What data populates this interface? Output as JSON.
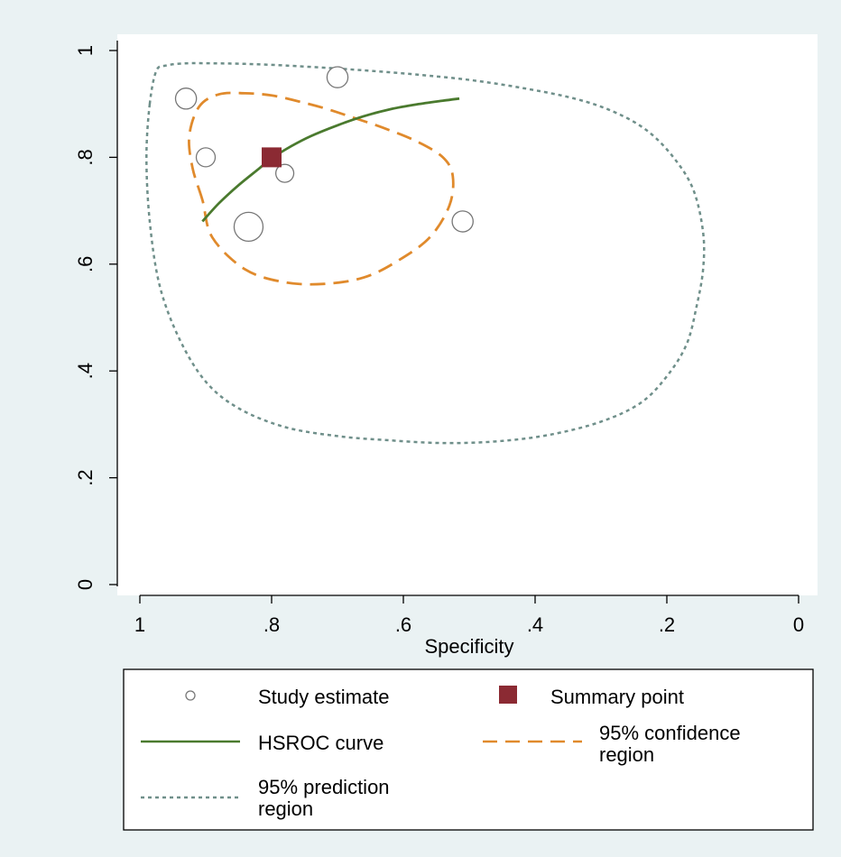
{
  "chart_data": {
    "type": "scatter",
    "xlabel": "Specificity",
    "ylabel": "",
    "xlim": [
      1,
      0
    ],
    "ylim": [
      0,
      1
    ],
    "x_reversed": true,
    "x_ticks": [
      "1",
      ".8",
      ".6",
      ".4",
      ".2",
      "0"
    ],
    "x_tick_values": [
      1,
      0.8,
      0.6,
      0.4,
      0.2,
      0
    ],
    "y_ticks": [
      "0",
      ".2",
      ".4",
      ".6",
      ".8",
      "1"
    ],
    "y_tick_values": [
      0,
      0.2,
      0.4,
      0.6,
      0.8,
      1
    ],
    "grid": false,
    "legend_placement": "bottom",
    "colors": {
      "background": "#eaf2f3",
      "plot_area": "#ffffff",
      "study": "#777777",
      "summary": "#8b2a33",
      "hsroc": "#4a7a2e",
      "confidence": "#e08a2c",
      "prediction": "#6f8f8a"
    },
    "series": [
      {
        "name": "Study estimate",
        "kind": "points",
        "points": [
          {
            "x": 0.93,
            "y": 0.91,
            "w": 0.6
          },
          {
            "x": 0.7,
            "y": 0.95,
            "w": 0.6
          },
          {
            "x": 0.9,
            "y": 0.8,
            "w": 0.5
          },
          {
            "x": 0.78,
            "y": 0.77,
            "w": 0.45
          },
          {
            "x": 0.835,
            "y": 0.67,
            "w": 1.0
          },
          {
            "x": 0.51,
            "y": 0.68,
            "w": 0.6
          }
        ]
      },
      {
        "name": "Summary point",
        "kind": "summary",
        "x": 0.8,
        "y": 0.8
      },
      {
        "name": "HSROC curve",
        "kind": "line",
        "x": [
          0.905,
          0.88,
          0.85,
          0.82,
          0.8,
          0.77,
          0.74,
          0.7,
          0.66,
          0.62,
          0.58,
          0.54,
          0.515
        ],
        "y": [
          0.68,
          0.714,
          0.748,
          0.778,
          0.798,
          0.821,
          0.84,
          0.86,
          0.877,
          0.89,
          0.899,
          0.906,
          0.91
        ]
      },
      {
        "name": "95% confidence region",
        "kind": "closed",
        "x": [
          0.905,
          0.92,
          0.925,
          0.91,
          0.88,
          0.84,
          0.8,
          0.76,
          0.72,
          0.68,
          0.63,
          0.58,
          0.54,
          0.525,
          0.53,
          0.56,
          0.61,
          0.66,
          0.72,
          0.78,
          0.84,
          0.89,
          0.905
        ],
        "y": [
          0.72,
          0.78,
          0.84,
          0.895,
          0.918,
          0.92,
          0.916,
          0.905,
          0.892,
          0.876,
          0.855,
          0.83,
          0.8,
          0.765,
          0.71,
          0.65,
          0.605,
          0.575,
          0.563,
          0.566,
          0.59,
          0.65,
          0.72
        ]
      },
      {
        "name": "95% prediction region",
        "kind": "closed",
        "x": [
          0.985,
          0.99,
          0.985,
          0.97,
          0.94,
          0.9,
          0.85,
          0.78,
          0.7,
          0.62,
          0.54,
          0.46,
          0.38,
          0.3,
          0.24,
          0.2,
          0.17,
          0.155,
          0.145,
          0.145,
          0.16,
          0.19,
          0.23,
          0.28,
          0.34,
          0.42,
          0.5,
          0.58,
          0.65,
          0.71,
          0.78,
          0.84,
          0.89,
          0.93,
          0.96,
          0.975,
          0.985
        ],
        "y": [
          0.9,
          0.8,
          0.68,
          0.56,
          0.46,
          0.38,
          0.33,
          0.295,
          0.278,
          0.27,
          0.265,
          0.268,
          0.28,
          0.305,
          0.34,
          0.39,
          0.45,
          0.52,
          0.59,
          0.66,
          0.74,
          0.8,
          0.85,
          0.885,
          0.91,
          0.93,
          0.945,
          0.955,
          0.962,
          0.967,
          0.972,
          0.975,
          0.976,
          0.976,
          0.972,
          0.962,
          0.9
        ]
      }
    ],
    "legend": {
      "study": "Study estimate",
      "summary": "Summary point",
      "hsroc": "HSROC curve",
      "confidence_1": "95% confidence",
      "confidence_2": "region",
      "prediction_1": "95% prediction",
      "prediction_2": "region"
    }
  }
}
